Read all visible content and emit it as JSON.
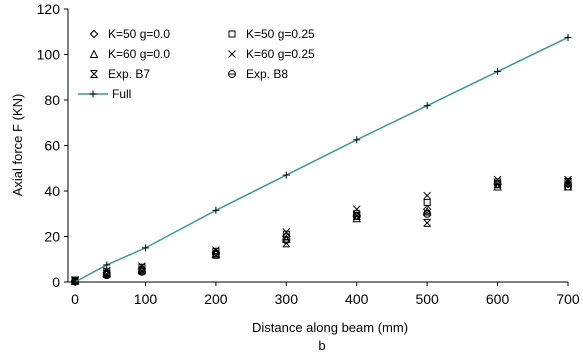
{
  "chart_data": {
    "type": "scatter",
    "title": "",
    "sublabel": "b",
    "xlabel": "Distance along beam (mm)",
    "ylabel": "Axial force F (KN)",
    "xlim": [
      -10,
      700
    ],
    "ylim": [
      0,
      120
    ],
    "xticks": [
      0,
      100,
      200,
      300,
      400,
      500,
      600,
      700
    ],
    "xtick_labels": [
      "0",
      "100",
      "200",
      "300",
      "400",
      "500",
      "600",
      "700"
    ],
    "yticks": [
      0,
      20,
      40,
      60,
      80,
      100,
      120
    ],
    "ytick_labels": [
      "0",
      "20",
      "40",
      "60",
      "80",
      "100",
      "120"
    ],
    "grid": false,
    "legend_position": "top-left",
    "colors": {
      "full_line": "#3a9a9a",
      "markers": "#000000"
    },
    "series": [
      {
        "name": "K=50 g=0.0",
        "marker": "diamond",
        "x": [
          0,
          45,
          95,
          200,
          300,
          400,
          500,
          600,
          700
        ],
        "y": [
          0.5,
          4,
          6,
          13,
          20,
          29,
          32,
          43,
          43
        ]
      },
      {
        "name": "K=50 g=0.25",
        "marker": "square",
        "x": [
          0,
          45,
          95,
          200,
          300,
          400,
          500,
          600,
          700
        ],
        "y": [
          0.8,
          4.5,
          6.5,
          13.5,
          21,
          30,
          35,
          44,
          44
        ]
      },
      {
        "name": "K=60 g=0.0",
        "marker": "triangle",
        "x": [
          0,
          45,
          95,
          200,
          300,
          400,
          500,
          600,
          700
        ],
        "y": [
          0.6,
          4,
          5.5,
          12.5,
          19,
          28,
          31,
          42,
          42
        ]
      },
      {
        "name": "K=60 g=0.25",
        "marker": "x",
        "x": [
          0,
          45,
          95,
          200,
          300,
          400,
          500,
          600,
          700
        ],
        "y": [
          1,
          5,
          7,
          14,
          22,
          32,
          38,
          45,
          45
        ]
      },
      {
        "name": "Exp. B7",
        "marker": "asterisk",
        "x": [
          0,
          45,
          95,
          200,
          300,
          400,
          500,
          600,
          700
        ],
        "y": [
          0.5,
          3.5,
          5,
          12,
          17,
          29,
          26,
          43,
          44
        ]
      },
      {
        "name": "Exp. B8",
        "marker": "circle",
        "x": [
          0,
          45,
          95,
          200,
          300,
          400,
          500,
          600,
          700
        ],
        "y": [
          0.3,
          3,
          4.5,
          12.5,
          18.5,
          29,
          30,
          43,
          42
        ]
      },
      {
        "name": "Full",
        "marker": "plus",
        "line": true,
        "x": [
          0,
          45,
          100,
          200,
          300,
          400,
          500,
          600,
          700
        ],
        "y": [
          0,
          7.5,
          15,
          31.5,
          47,
          62.5,
          77.5,
          92.5,
          107.5
        ]
      }
    ]
  }
}
